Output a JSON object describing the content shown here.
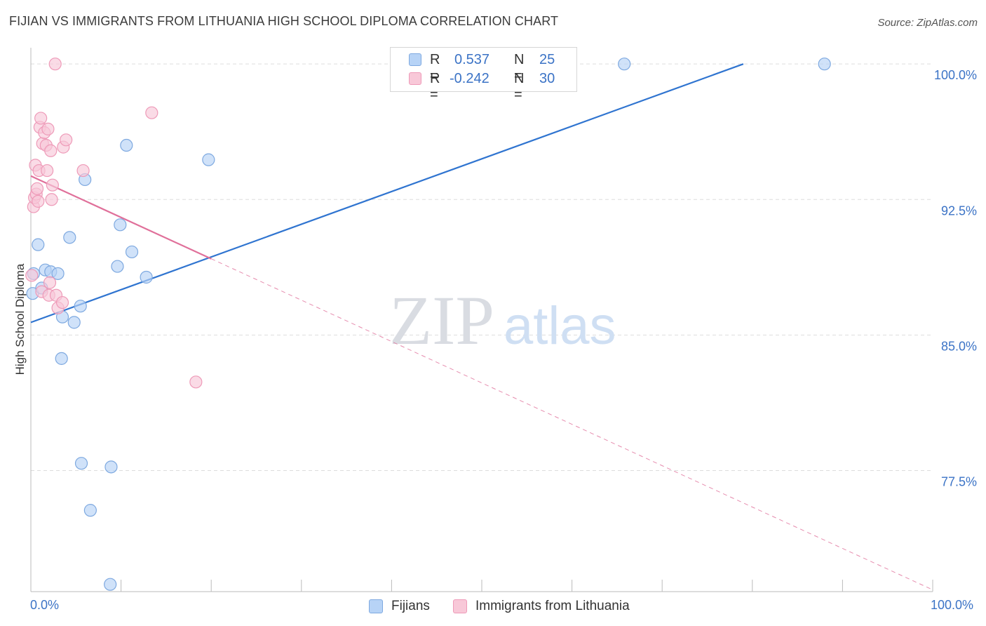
{
  "header": {
    "title": "FIJIAN VS IMMIGRANTS FROM LITHUANIA HIGH SCHOOL DIPLOMA CORRELATION CHART",
    "source": "Source: ZipAtlas.com"
  },
  "watermark": {
    "zip": "ZIP",
    "atlas": "atlas"
  },
  "legend": {
    "rows": [
      {
        "r_label": "R =",
        "r_value": "0.537",
        "n_label": "N =",
        "n_value": "25"
      },
      {
        "r_label": "R =",
        "r_value": "-0.242",
        "n_label": "N =",
        "n_value": "30"
      }
    ]
  },
  "colors": {
    "blue_fill": "#b7d3f6",
    "blue_stroke": "#7ea9e0",
    "blue_line": "#2f74d0",
    "pink_fill": "#f8c8d8",
    "pink_stroke": "#ee9ab8",
    "pink_line": "#e0709a",
    "axis_text": "#3b73c6",
    "grid": "#dddddd"
  },
  "chart_data": {
    "type": "scatter",
    "title": "FIJIAN VS IMMIGRANTS FROM LITHUANIA HIGH SCHOOL DIPLOMA CORRELATION CHART",
    "xlabel": "",
    "ylabel": "High School Diploma",
    "xlim": [
      0,
      100
    ],
    "ylim": [
      70.8,
      100.9
    ],
    "x_tick_labels": [
      "0.0%",
      "100.0%"
    ],
    "y_ticks": [
      77.5,
      85.0,
      92.5,
      100.0
    ],
    "y_tick_labels": [
      "77.5%",
      "85.0%",
      "92.5%",
      "100.0%"
    ],
    "grid": true,
    "legend_labels": [
      "Fijians",
      "Immigrants from Lithuania"
    ],
    "series": [
      {
        "name": "Fijians",
        "color": "blue",
        "R": 0.537,
        "N": 25,
        "points": [
          [
            0.2,
            87.3
          ],
          [
            0.8,
            90.0
          ],
          [
            1.2,
            87.6
          ],
          [
            1.6,
            88.6
          ],
          [
            2.2,
            88.5
          ],
          [
            3.0,
            88.4
          ],
          [
            3.5,
            86.0
          ],
          [
            4.3,
            90.4
          ],
          [
            4.8,
            85.7
          ],
          [
            5.5,
            86.6
          ],
          [
            3.4,
            83.7
          ],
          [
            5.6,
            77.9
          ],
          [
            6.6,
            75.3
          ],
          [
            8.8,
            71.2
          ],
          [
            8.9,
            77.7
          ],
          [
            9.6,
            88.8
          ],
          [
            9.9,
            91.1
          ],
          [
            10.6,
            95.5
          ],
          [
            11.2,
            89.6
          ],
          [
            12.8,
            88.2
          ],
          [
            6.0,
            93.6
          ],
          [
            19.7,
            94.7
          ],
          [
            65.8,
            100.0
          ],
          [
            88.0,
            100.0
          ],
          [
            0.3,
            88.4
          ]
        ],
        "trend": {
          "x0": 0,
          "y0": 85.7,
          "x1": 79,
          "y1": 100.0
        }
      },
      {
        "name": "Immigrants from Lithuania",
        "color": "pink",
        "R": -0.242,
        "N": 30,
        "points": [
          [
            0.1,
            88.3
          ],
          [
            0.3,
            92.1
          ],
          [
            0.4,
            92.6
          ],
          [
            0.5,
            94.4
          ],
          [
            0.6,
            92.8
          ],
          [
            0.7,
            93.1
          ],
          [
            0.8,
            92.4
          ],
          [
            0.9,
            94.1
          ],
          [
            1.0,
            96.5
          ],
          [
            1.1,
            97.0
          ],
          [
            1.2,
            87.4
          ],
          [
            1.3,
            95.6
          ],
          [
            1.5,
            96.2
          ],
          [
            1.7,
            95.5
          ],
          [
            1.8,
            94.1
          ],
          [
            1.9,
            96.4
          ],
          [
            2.0,
            87.2
          ],
          [
            2.1,
            87.9
          ],
          [
            2.2,
            95.2
          ],
          [
            2.3,
            92.5
          ],
          [
            2.4,
            93.3
          ],
          [
            2.8,
            87.2
          ],
          [
            3.0,
            86.5
          ],
          [
            3.5,
            86.8
          ],
          [
            3.6,
            95.4
          ],
          [
            3.9,
            95.8
          ],
          [
            5.8,
            94.1
          ],
          [
            2.7,
            100.0
          ],
          [
            13.4,
            97.3
          ],
          [
            18.3,
            82.4
          ]
        ],
        "trend": {
          "x0": 0,
          "y0": 93.8,
          "x1": 100,
          "y1": 70.9,
          "solid_until_x": 20
        }
      }
    ]
  }
}
